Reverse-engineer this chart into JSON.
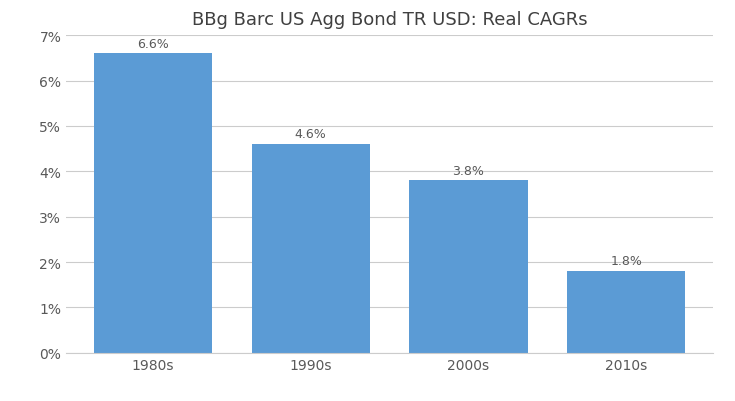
{
  "title": "BBg Barc US Agg Bond TR USD: Real CAGRs",
  "categories": [
    "1980s",
    "1990s",
    "2000s",
    "2010s"
  ],
  "values": [
    6.6,
    4.6,
    3.8,
    1.8
  ],
  "labels": [
    "6.6%",
    "4.6%",
    "3.8%",
    "1.8%"
  ],
  "bar_color": "#5B9BD5",
  "ylim": [
    0,
    0.07
  ],
  "yticks": [
    0,
    0.01,
    0.02,
    0.03,
    0.04,
    0.05,
    0.06,
    0.07
  ],
  "ytick_labels": [
    "0%",
    "1%",
    "2%",
    "3%",
    "4%",
    "5%",
    "6%",
    "7%"
  ],
  "background_color": "#FFFFFF",
  "title_fontsize": 13,
  "label_fontsize": 9,
  "tick_fontsize": 10,
  "bar_width": 0.75
}
